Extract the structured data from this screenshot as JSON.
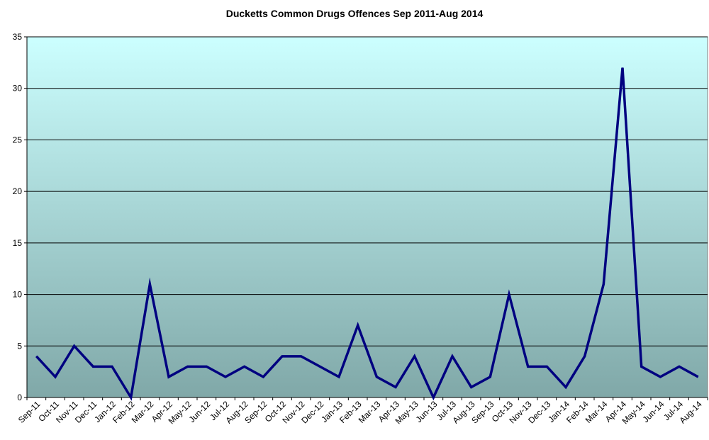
{
  "chart_data": {
    "type": "line",
    "title": "Ducketts Common Drugs Offences Sep 2011-Aug 2014",
    "xlabel": "",
    "ylabel": "",
    "ylim": [
      0,
      35
    ],
    "yticks": [
      0,
      5,
      10,
      15,
      20,
      25,
      30,
      35
    ],
    "grid": true,
    "legend": "none",
    "categories": [
      "Sep-11",
      "Oct-11",
      "Nov-11",
      "Dec-11",
      "Jan-12",
      "Feb-12",
      "Mar-12",
      "Apr-12",
      "May-12",
      "Jun-12",
      "Jul-12",
      "Aug-12",
      "Sep-12",
      "Oct-12",
      "Nov-12",
      "Dec-12",
      "Jan-13",
      "Feb-13",
      "Mar-13",
      "Apr-13",
      "May-13",
      "Jun-13",
      "Jul-13",
      "Aug-13",
      "Sep-13",
      "Oct-13",
      "Nov-13",
      "Dec-13",
      "Jan-14",
      "Feb-14",
      "Mar-14",
      "Apr-14",
      "May-14",
      "Jun-14",
      "Jul-14",
      "Aug-14"
    ],
    "series": [
      {
        "values": [
          4,
          2,
          5,
          3,
          3,
          0,
          11,
          2,
          3,
          3,
          2,
          3,
          2,
          4,
          4,
          3,
          2,
          7,
          2,
          1,
          4,
          0,
          4,
          1,
          2,
          10,
          3,
          3,
          1,
          4,
          11,
          32,
          3,
          2,
          3,
          2
        ],
        "color": "#000080"
      }
    ],
    "plot_background": {
      "top": "#ccffff",
      "bottom": "#80a8a8"
    }
  }
}
